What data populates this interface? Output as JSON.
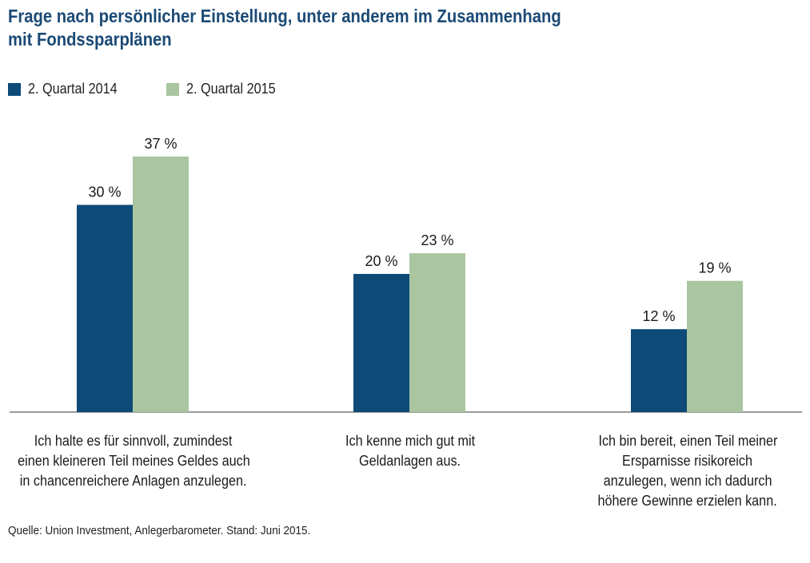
{
  "chart_data": {
    "type": "bar",
    "title": "Frage nach persönlicher Einstellung, unter anderem im Zusammenhang mit Fondssparplänen",
    "title_lines": [
      "Frage nach persönlicher Einstellung, unter anderem im Zusammenhang",
      "mit Fondssparplänen"
    ],
    "categories": [
      "Ich halte es für sinnvoll, zumindest einen kleineren Teil meines Geldes auch in chancenreichere Anlagen anzulegen.",
      "Ich kenne mich gut mit Geldanlagen aus.",
      "Ich bin bereit, einen Teil meiner Ersparnisse risikoreich anzulegen, wenn ich dadurch höhere Gewinne erzielen kann."
    ],
    "category_lines": [
      [
        "Ich halte es für sinnvoll, zumindest",
        "einen kleineren Teil meines Geldes auch",
        "in chancenreichere Anlagen anzulegen."
      ],
      [
        "Ich kenne mich gut mit",
        "Geldanlagen aus."
      ],
      [
        "Ich bin bereit, einen Teil meiner",
        "Ersparnisse risikoreich",
        "anzulegen, wenn ich dadurch",
        "höhere Gewinne erzielen kann."
      ]
    ],
    "series": [
      {
        "name": "2. Quartal 2014",
        "values": [
          30,
          20,
          12
        ],
        "labels": [
          "30 %",
          "20 %",
          "12 %"
        ],
        "color": "#0d4a78"
      },
      {
        "name": "2. Quartal 2015",
        "values": [
          37,
          23,
          19
        ],
        "labels": [
          "37 %",
          "23 %",
          "19 %"
        ],
        "color": "#a9c6a0"
      }
    ],
    "ylim": [
      0,
      40
    ],
    "xlabel": "",
    "ylabel": "",
    "grid": false,
    "legend_position": "top-left"
  },
  "legend": {
    "item1": "2. Quartal 2014",
    "item2": "2. Quartal 2015"
  },
  "source": "Quelle: Union Investment, Anlegerbarometer. Stand: Juni 2015.",
  "colors": {
    "title": "#1b4a75",
    "axis": "#7a7a7a"
  }
}
